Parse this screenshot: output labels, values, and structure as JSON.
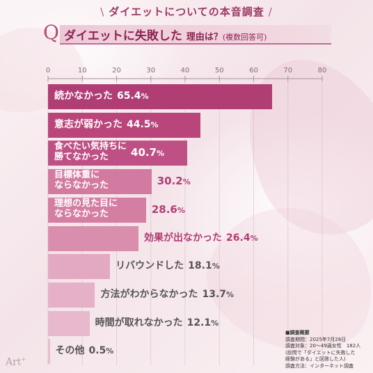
{
  "header": {
    "left_deco": "\\",
    "title": "ダイエットについての本音調査",
    "right_deco": "/"
  },
  "question": {
    "letter": "Q",
    "main": "ダイエットに失敗した",
    "sub": "理由は？",
    "note": "(複数回答可)"
  },
  "chart_data": {
    "type": "bar",
    "orientation": "horizontal",
    "xlim": [
      0,
      80
    ],
    "x_ticks": [
      "0",
      "10",
      "20",
      "30",
      "40",
      "50",
      "60",
      "70",
      "80"
    ],
    "grid": true,
    "categories": [
      "続かなかった",
      "意志が弱かった",
      "食べたい気持ちに勝てなかった",
      "目標体重にならなかった",
      "理想の見た目にならなかった",
      "効果が出なかった",
      "リバウンドした",
      "方法がわからなかった",
      "時間が取れなかった",
      "その他"
    ],
    "label_lines": [
      [
        "続かなかった"
      ],
      [
        "意志が弱かった"
      ],
      [
        "食べたい気持ちに",
        "勝てなかった"
      ],
      [
        "目標体重に",
        "ならなかった"
      ],
      [
        "理想の見た目に",
        "ならなかった"
      ],
      [
        "効果が出なかった"
      ],
      [
        "リバウンドした"
      ],
      [
        "方法がわからなかった"
      ],
      [
        "時間が取れなかった"
      ],
      [
        "その他"
      ]
    ],
    "values": [
      65.4,
      44.5,
      40.7,
      30.2,
      28.6,
      26.4,
      18.1,
      13.7,
      12.1,
      0.5
    ],
    "value_labels": [
      "65.4",
      "44.5",
      "40.7",
      "30.2",
      "28.6",
      "26.4",
      "18.1",
      "13.7",
      "12.1",
      "0.5"
    ],
    "unit": "%",
    "colors": [
      "#b03d74",
      "#b9457b",
      "#bf5085",
      "#d37aa1",
      "#d47ea4",
      "#d98eae",
      "#e3a9c2",
      "#e6b1c8",
      "#e8b8cd",
      "#e9bdd1"
    ]
  },
  "survey": {
    "heading": "■調査概要",
    "period": "調査期間：2025年7月28日",
    "subjects": "調査対象：20〜49歳女性　182人",
    "note1": "(前問で「ダイエットに失敗した",
    "note2": "経験がある」と回答した人)",
    "method": "調査方法：インターネット調査"
  },
  "logo": {
    "text": "Art",
    "sup": "+"
  }
}
